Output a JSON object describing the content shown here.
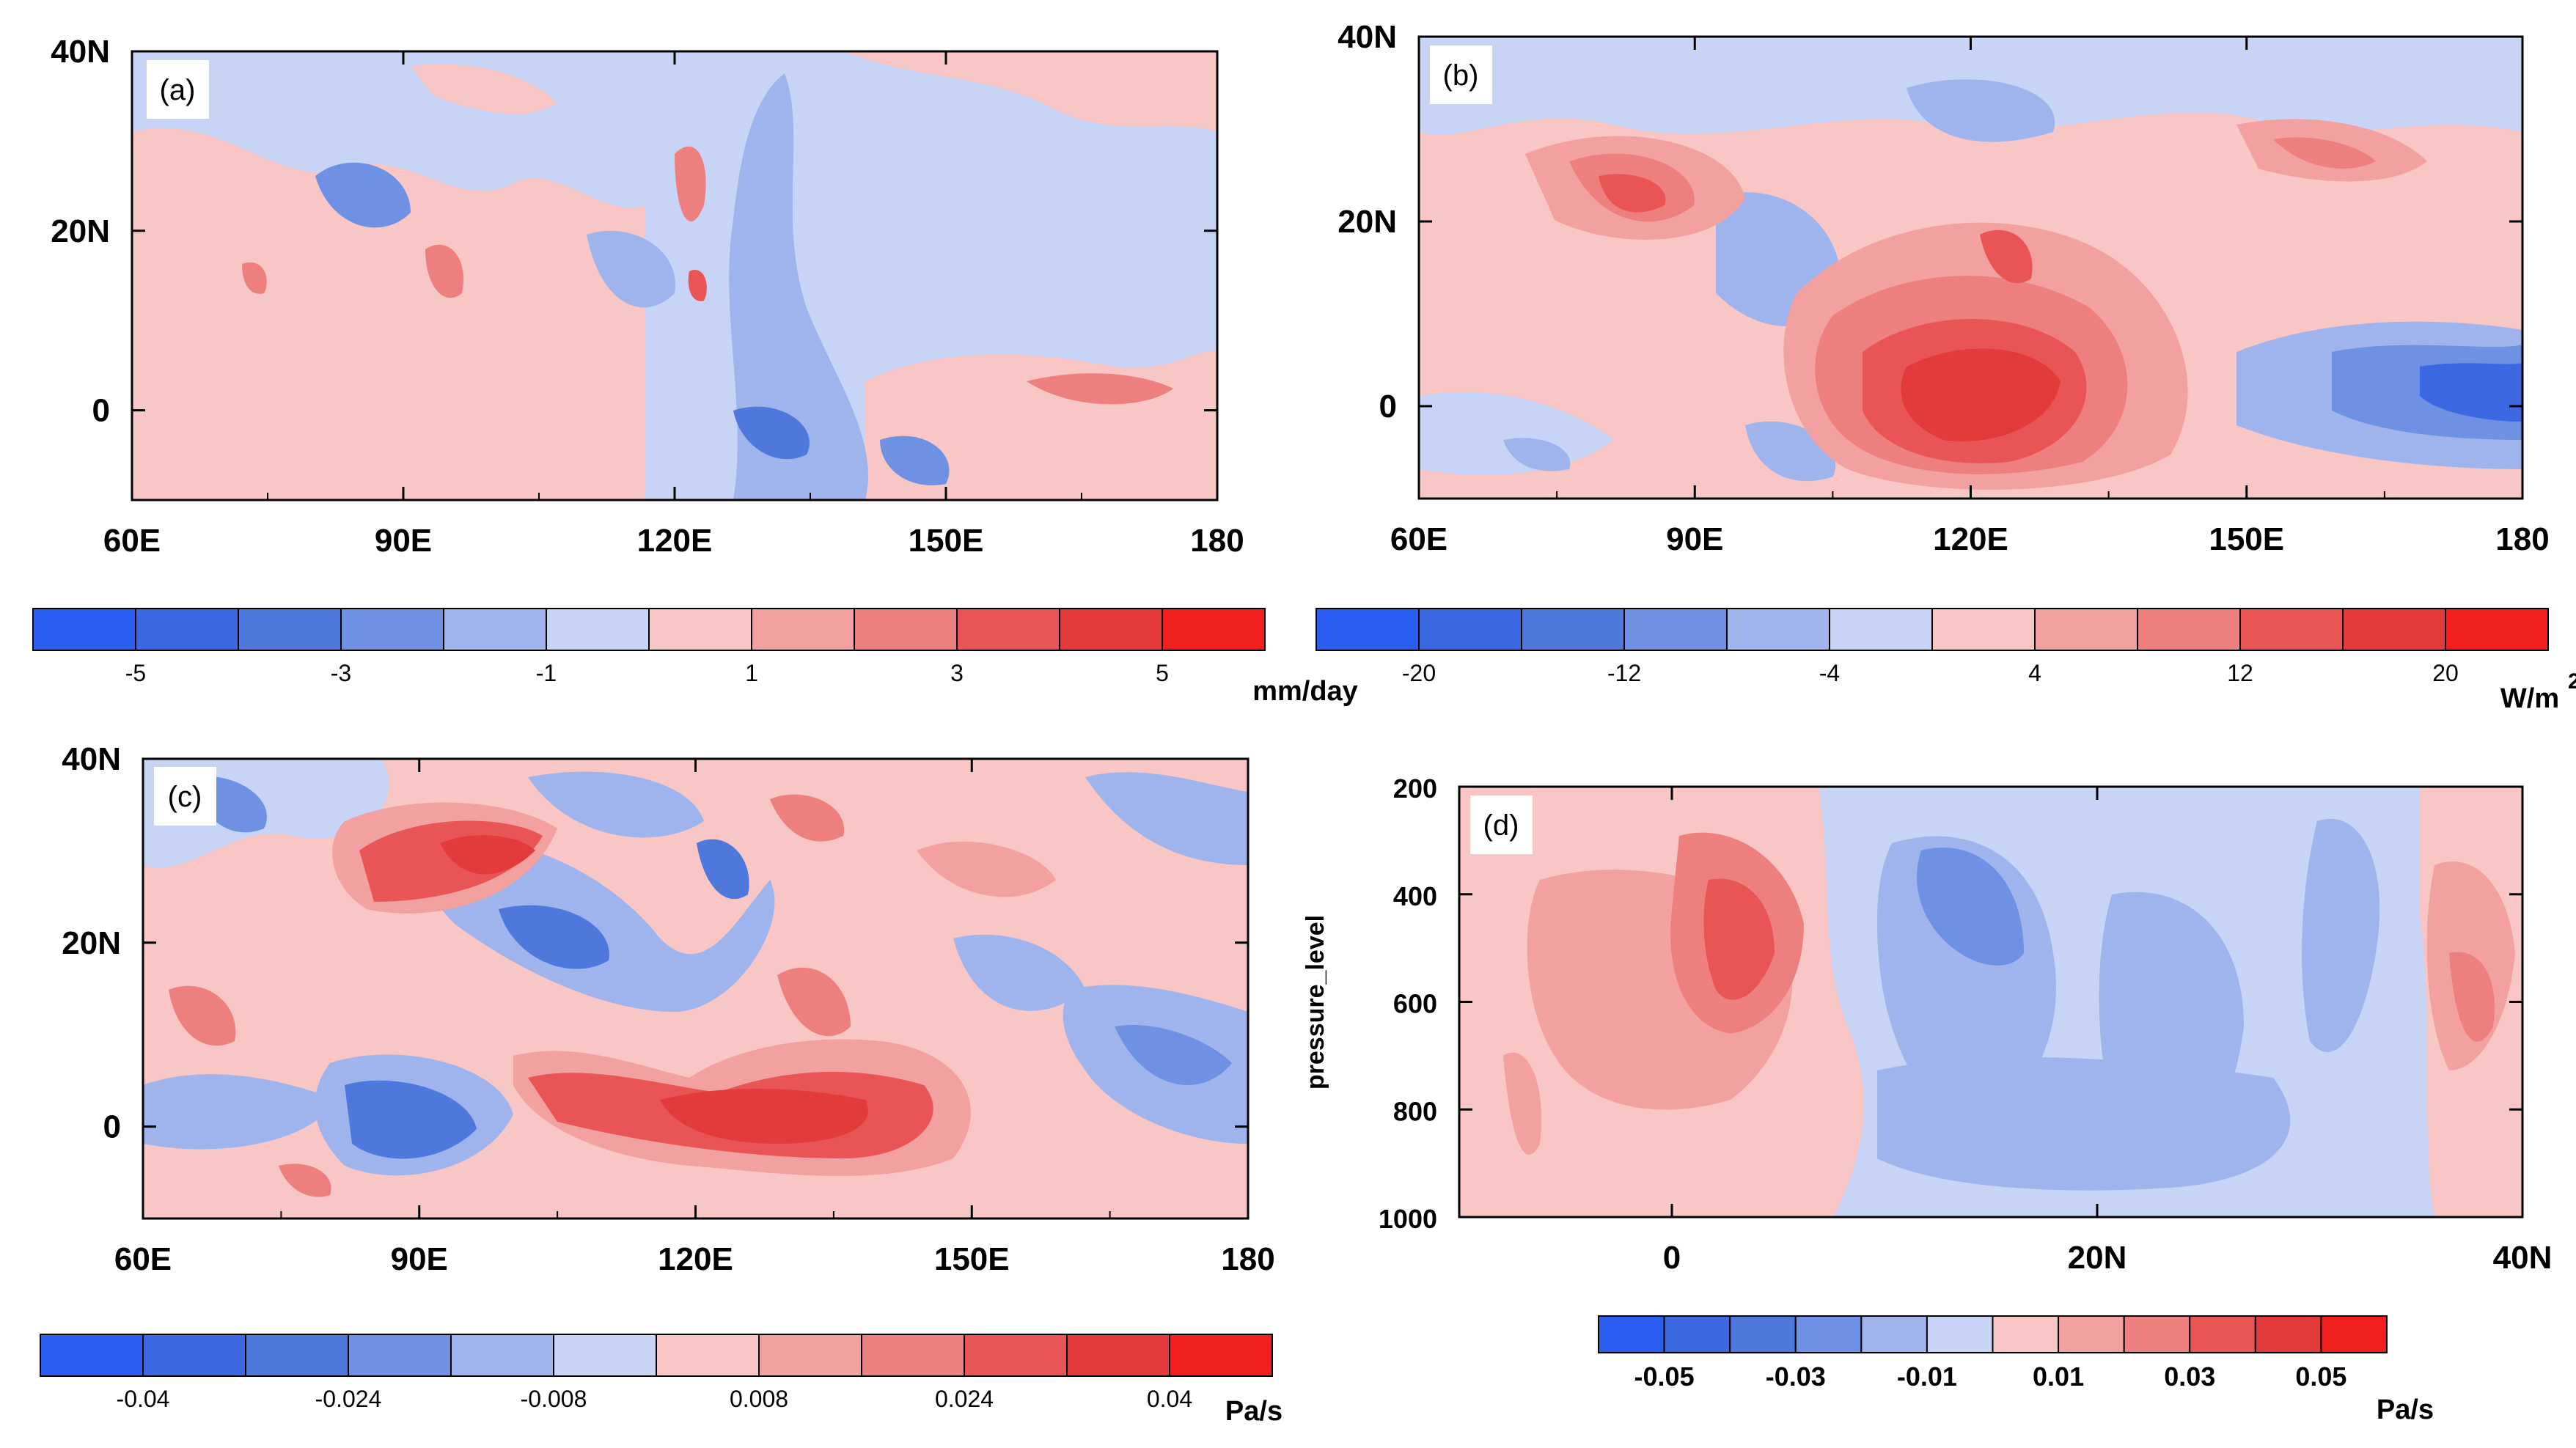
{
  "figure": {
    "panels": [
      {
        "id": "a",
        "label": "(a)",
        "type": "contour-map",
        "x_ticks": [
          "60E",
          "90E",
          "120E",
          "150E",
          "180"
        ],
        "y_ticks": [
          "40N",
          "20N",
          "0"
        ],
        "xlim": [
          60,
          180
        ],
        "ylim": [
          -10,
          40
        ],
        "colorbar": {
          "unit": "mm/day",
          "labels": [
            "-5",
            "-3",
            "-1",
            "1",
            "3",
            "5"
          ],
          "levels": [
            -6,
            -5,
            -4,
            -3,
            -2,
            -1,
            0,
            1,
            2,
            3,
            4,
            5,
            6
          ]
        }
      },
      {
        "id": "b",
        "label": "(b)",
        "type": "contour-map",
        "x_ticks": [
          "60E",
          "90E",
          "120E",
          "150E",
          "180"
        ],
        "y_ticks": [
          "40N",
          "20N",
          "0"
        ],
        "xlim": [
          60,
          180
        ],
        "ylim": [
          -10,
          40
        ],
        "colorbar": {
          "unit": "W/m",
          "unit_sup": "2",
          "labels": [
            "-20",
            "-12",
            "-4",
            "4",
            "12",
            "20"
          ],
          "levels": [
            -24,
            -20,
            -16,
            -12,
            -8,
            -4,
            0,
            4,
            8,
            12,
            16,
            20,
            24
          ]
        }
      },
      {
        "id": "c",
        "label": "(c)",
        "type": "contour-map",
        "x_ticks": [
          "60E",
          "90E",
          "120E",
          "150E",
          "180"
        ],
        "y_ticks": [
          "40N",
          "20N",
          "0"
        ],
        "xlim": [
          60,
          180
        ],
        "ylim": [
          -10,
          40
        ],
        "colorbar": {
          "unit": "Pa/s",
          "labels": [
            "-0.04",
            "-0.024",
            "-0.008",
            "0.008",
            "0.024",
            "0.04"
          ],
          "levels": [
            -0.048,
            -0.04,
            -0.032,
            -0.024,
            -0.016,
            -0.008,
            0,
            0.008,
            0.016,
            0.024,
            0.032,
            0.04,
            0.048
          ]
        }
      },
      {
        "id": "d",
        "label": "(d)",
        "type": "contour-section",
        "x_ticks": [
          "0",
          "20N",
          "40N"
        ],
        "y_ticks": [
          "200",
          "400",
          "600",
          "800",
          "1000"
        ],
        "ylabel": "pressure_level",
        "xlim": [
          -10,
          40
        ],
        "ylim": [
          1000,
          200
        ],
        "colorbar": {
          "unit": "Pa/s",
          "labels": [
            "-0.05",
            "-0.03",
            "-0.01",
            "0.01",
            "0.03",
            "0.05"
          ],
          "levels": [
            -0.06,
            -0.05,
            -0.04,
            -0.03,
            -0.02,
            -0.01,
            0,
            0.01,
            0.02,
            0.03,
            0.04,
            0.05,
            0.06
          ]
        }
      }
    ]
  },
  "chart_data": [
    {
      "type": "heatmap",
      "title": "(a)",
      "xlabel": "longitude",
      "ylabel": "latitude",
      "xlim": [
        60,
        180
      ],
      "ylim": [
        -10,
        40
      ],
      "units": "mm/day",
      "colorbar_levels": [
        -6,
        -5,
        -4,
        -3,
        -2,
        -1,
        0,
        1,
        2,
        3,
        4,
        5,
        6
      ],
      "features": [
        {
          "lon": 87,
          "lat": 25,
          "value": -3
        },
        {
          "lon": 92,
          "lat": 23,
          "value": -3
        },
        {
          "lon": 115,
          "lat": 15,
          "value": -3
        },
        {
          "lon": 128,
          "lat": 22,
          "value": -2
        },
        {
          "lon": 128,
          "lat": -3,
          "value": -4
        },
        {
          "lon": 138,
          "lat": 3,
          "value": -3
        },
        {
          "lon": 133,
          "lat": 8,
          "value": -2
        },
        {
          "lon": 118,
          "lat": 25,
          "value": 3
        },
        {
          "lon": 121,
          "lat": 14,
          "value": 4
        },
        {
          "lon": 73,
          "lat": 15,
          "value": 3
        },
        {
          "lon": 95,
          "lat": 15,
          "value": 3
        },
        {
          "lon": 170,
          "lat": 1,
          "value": 2
        },
        {
          "lon": 160,
          "lat": 25,
          "value": 1
        },
        {
          "lon": 150,
          "lat": -5,
          "value": 3
        }
      ]
    },
    {
      "type": "heatmap",
      "title": "(b)",
      "xlabel": "longitude",
      "ylabel": "latitude",
      "xlim": [
        60,
        180
      ],
      "ylim": [
        -10,
        40
      ],
      "units": "W/m2",
      "colorbar_levels": [
        -24,
        -20,
        -16,
        -12,
        -8,
        -4,
        0,
        4,
        8,
        12,
        16,
        20,
        24
      ],
      "features": [
        {
          "lon": 125,
          "lat": 0,
          "value": 22
        },
        {
          "lon": 115,
          "lat": 3,
          "value": 18
        },
        {
          "lon": 130,
          "lat": 8,
          "value": 16
        },
        {
          "lon": 88,
          "lat": 24,
          "value": 18
        },
        {
          "lon": 78,
          "lat": 28,
          "value": 12
        },
        {
          "lon": 165,
          "lat": 25,
          "value": 12
        },
        {
          "lon": 175,
          "lat": 0,
          "value": -22
        },
        {
          "lon": 165,
          "lat": 0,
          "value": -16
        },
        {
          "lon": 108,
          "lat": 20,
          "value": -10
        },
        {
          "lon": 140,
          "lat": 36,
          "value": -10
        },
        {
          "lon": 75,
          "lat": 2,
          "value": -8
        }
      ]
    },
    {
      "type": "heatmap",
      "title": "(c)",
      "xlabel": "longitude",
      "ylabel": "latitude",
      "xlim": [
        60,
        180
      ],
      "ylim": [
        -10,
        40
      ],
      "units": "Pa/s",
      "colorbar_levels": [
        -0.048,
        -0.04,
        -0.032,
        -0.024,
        -0.016,
        -0.008,
        0,
        0.008,
        0.016,
        0.024,
        0.032,
        0.04,
        0.048
      ],
      "features": [
        {
          "lon": 95,
          "lat": 26,
          "value": 0.048
        },
        {
          "lon": 125,
          "lat": 2,
          "value": 0.048
        },
        {
          "lon": 110,
          "lat": 2,
          "value": 0.04
        },
        {
          "lon": 138,
          "lat": 2,
          "value": 0.04
        },
        {
          "lon": 70,
          "lat": 10,
          "value": 0.032
        },
        {
          "lon": 135,
          "lat": 35,
          "value": 0.032
        },
        {
          "lon": 165,
          "lat": 22,
          "value": 0.024
        },
        {
          "lon": 107,
          "lat": 20,
          "value": -0.04
        },
        {
          "lon": 95,
          "lat": -3,
          "value": -0.04
        },
        {
          "lon": 170,
          "lat": 4,
          "value": -0.032
        },
        {
          "lon": 65,
          "lat": 35,
          "value": -0.032
        },
        {
          "lon": 150,
          "lat": 12,
          "value": -0.024
        }
      ]
    },
    {
      "type": "heatmap",
      "title": "(d)",
      "xlabel": "latitude",
      "ylabel": "pressure_level",
      "xlim": [
        -10,
        40
      ],
      "ylim": [
        1000,
        200
      ],
      "units": "Pa/s",
      "colorbar_levels": [
        -0.06,
        -0.05,
        -0.04,
        -0.03,
        -0.02,
        -0.01,
        0,
        0.01,
        0.02,
        0.03,
        0.04,
        0.05,
        0.06
      ],
      "features": [
        {
          "lat": 4,
          "p": 400,
          "value": 0.04
        },
        {
          "lat": -5,
          "p": 500,
          "value": 0.02
        },
        {
          "lat": 38,
          "p": 550,
          "value": 0.02
        },
        {
          "lat": 14,
          "p": 400,
          "value": -0.03
        },
        {
          "lat": 26,
          "p": 600,
          "value": -0.02
        },
        {
          "lat": 20,
          "p": 800,
          "value": -0.01
        }
      ]
    }
  ]
}
